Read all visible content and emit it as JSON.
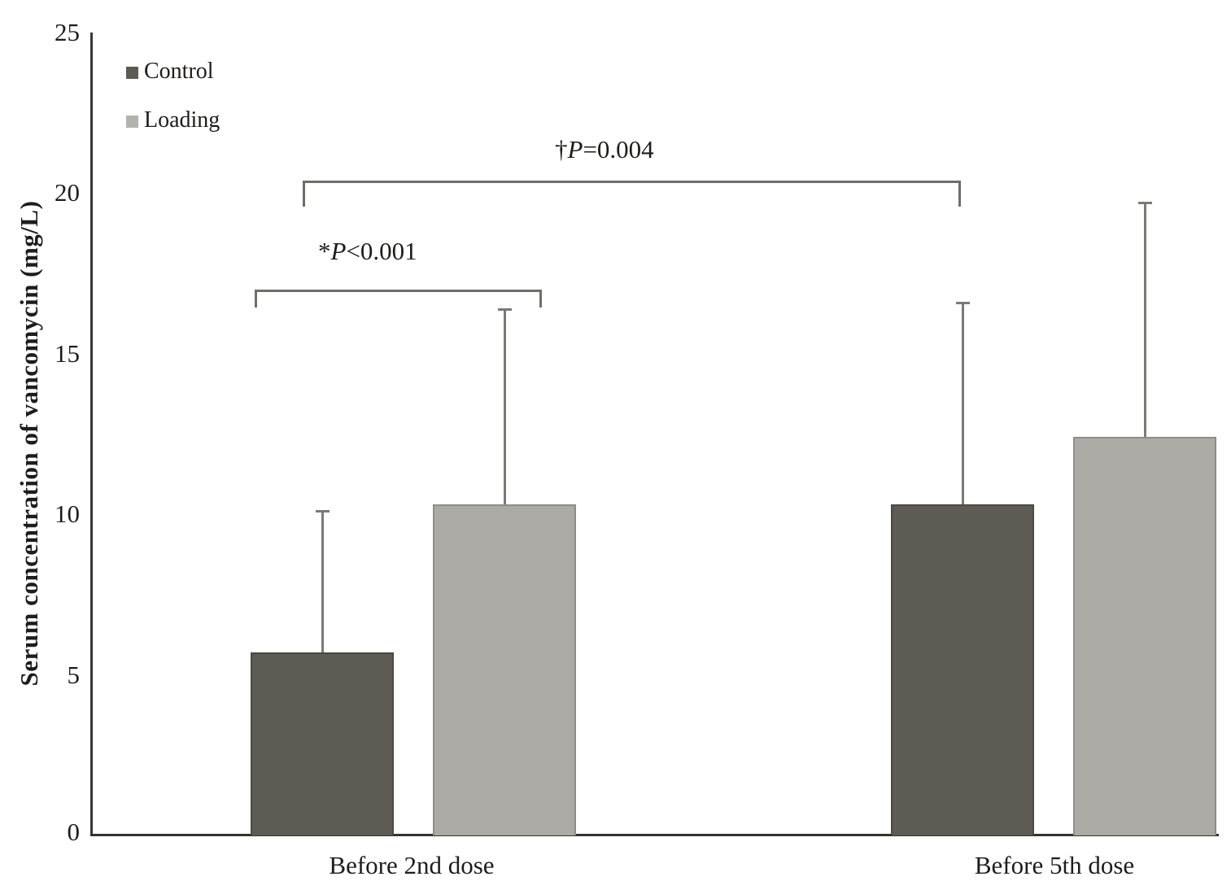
{
  "figure": {
    "y_axis": {
      "title": "Serum concentration of vancomycin (mg/L)",
      "tick_values": [
        25,
        20,
        15,
        10,
        5,
        0
      ]
    },
    "x_axis": {
      "categories": [
        "Before 2nd dose",
        "Before 5th dose"
      ]
    },
    "legend": {
      "items": [
        {
          "label": "Control",
          "color": "#5e5a54"
        },
        {
          "label": "Loading",
          "color": "#b4b2ac"
        }
      ]
    },
    "annotations": [
      {
        "marker": "*",
        "p_symbol": "P",
        "value_text": "<0.001"
      },
      {
        "marker": "†",
        "p_symbol": "P",
        "value_text": "=0.004"
      }
    ]
  },
  "chart_data": {
    "type": "bar",
    "title": "",
    "xlabel": "",
    "ylabel": "Serum concentration of vancomycin (mg/L)",
    "ylim": [
      0,
      25
    ],
    "yticks": [
      0,
      5,
      10,
      15,
      20,
      25
    ],
    "grid": false,
    "legend_position": "top-left",
    "categories": [
      "Before 2nd dose",
      "Before 5th dose"
    ],
    "series": [
      {
        "name": "Control",
        "values": [
          5.7,
          10.3
        ],
        "error_upper": [
          4.4,
          6.3
        ],
        "color": "#5e5a54",
        "border_color": "#4c4843"
      },
      {
        "name": "Loading",
        "values": [
          10.3,
          12.4
        ],
        "error_upper": [
          6.1,
          7.3
        ],
        "color": "#acaaa4",
        "border_color": "#908d87"
      }
    ],
    "annotations": [
      {
        "label": "*P<0.001",
        "compares": [
          "Control / Before 2nd dose",
          "Loading / Before 2nd dose"
        ]
      },
      {
        "label": "†P=0.004",
        "compares": [
          "Control / Before 2nd dose",
          "Control / Before 5th dose"
        ]
      }
    ],
    "error_bars": "upper whiskers only, with end caps"
  }
}
